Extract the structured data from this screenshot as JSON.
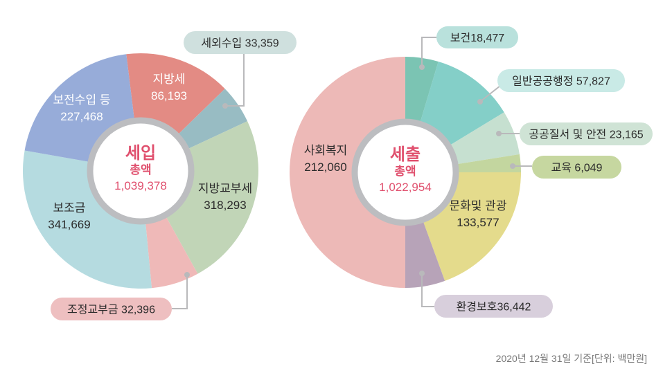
{
  "chart_data": [
    {
      "type": "pie",
      "title": "세입",
      "center_label": "총액",
      "total": "1,039,378",
      "slices": [
        {
          "label": "지방세",
          "value": 86193,
          "value_text": "86,193",
          "color": "#e38b84"
        },
        {
          "label": "세외수입",
          "value": 33359,
          "value_text": "33,359",
          "color": "#98bcc3",
          "callout_color": "#cfe0de"
        },
        {
          "label": "지방교부세",
          "value": 318293,
          "value_text": "318,293",
          "color": "#c1d5b7"
        },
        {
          "label": "조정교부금",
          "value": 32396,
          "value_text": "32,396",
          "color": "#efb9b8",
          "callout_color": "#eebfc0"
        },
        {
          "label": "보조금",
          "value": 341669,
          "value_text": "341,669",
          "color": "#b5dbe0"
        },
        {
          "label": "보전수입 등",
          "value": 227468,
          "value_text": "227,468",
          "color": "#97acd9"
        }
      ]
    },
    {
      "type": "pie",
      "title": "세출",
      "center_label": "총액",
      "total": "1,022,954",
      "slices": [
        {
          "label": "보건",
          "value": 18477,
          "value_text": "18,477",
          "color": "#7bc4b3",
          "callout_color": "#b9e1dc"
        },
        {
          "label": "일반공공행정",
          "value": 57827,
          "value_text": "57,827",
          "color": "#84cfc8",
          "callout_color": "#c9eae6"
        },
        {
          "label": "공공질서 및 안전",
          "value": 23165,
          "value_text": "23,165",
          "color": "#c6e0d0",
          "callout_color": "#cfe3d5"
        },
        {
          "label": "교육",
          "value": 6049,
          "value_text": "6,049",
          "color": "#c3d69f",
          "callout_color": "#c6d7a0"
        },
        {
          "label": "문화및 관광",
          "value": 133577,
          "value_text": "133,577",
          "color": "#e4db8c"
        },
        {
          "label": "환경보호",
          "value": 36442,
          "value_text": "36,442",
          "color": "#b7a3b8",
          "callout_color": "#d8cfdc"
        },
        {
          "label": "사회복지",
          "value": 212060,
          "value_text": "212,060",
          "color": "#edb9b7"
        }
      ]
    }
  ],
  "footnote": "2020년 12월 31일 기준[단위: 백만원]",
  "colors": {
    "center_text": "#e0506e",
    "ring": "#bcbdc0",
    "leader": "#b9b9bb"
  }
}
